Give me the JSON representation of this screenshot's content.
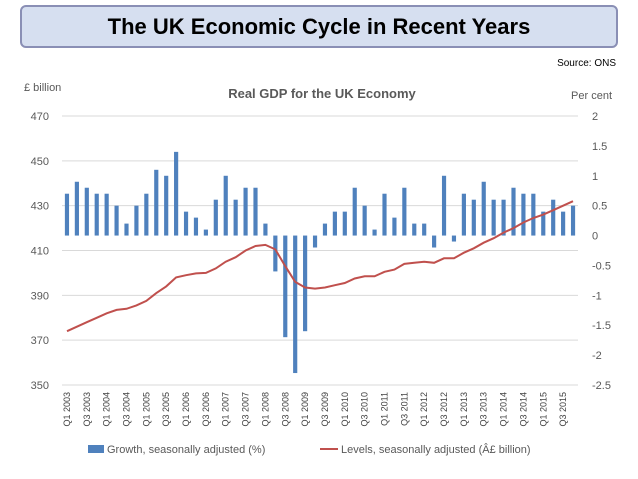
{
  "header": {
    "title": "The UK Economic Cycle in Recent Years"
  },
  "source": "Source: ONS",
  "colors": {
    "bars": "#4f81bd",
    "line": "#c0504d",
    "title_bg": "#d6dff0",
    "title_border": "#8a8fb5"
  },
  "chart_data": {
    "type": "bar+line",
    "title": "Real GDP for the UK Economy",
    "left_axis_label": "£ billion",
    "right_axis_label": "Per cent",
    "left_axis": {
      "min": 350,
      "max": 470,
      "ticks": [
        "470",
        "450",
        "430",
        "410",
        "390",
        "370",
        "350"
      ]
    },
    "right_axis": {
      "min": -2.5,
      "max": 2,
      "ticks": [
        "2",
        "1.5",
        "1",
        "0.5",
        "0",
        "-0.5",
        "-1",
        "-1.5",
        "-2",
        "-2.5"
      ]
    },
    "categories": [
      "Q1 2003",
      "Q2 2003",
      "Q3 2003",
      "Q4 2003",
      "Q1 2004",
      "Q2 2004",
      "Q3 2004",
      "Q4 2004",
      "Q1 2005",
      "Q2 2005",
      "Q3 2005",
      "Q4 2005",
      "Q1 2006",
      "Q2 2006",
      "Q3 2006",
      "Q4 2006",
      "Q1 2007",
      "Q2 2007",
      "Q3 2007",
      "Q4 2007",
      "Q1 2008",
      "Q2 2008",
      "Q3 2008",
      "Q4 2008",
      "Q1 2009",
      "Q2 2009",
      "Q3 2009",
      "Q4 2009",
      "Q1 2010",
      "Q2 2010",
      "Q3 2010",
      "Q4 2010",
      "Q1 2011",
      "Q2 2011",
      "Q3 2011",
      "Q4 2011",
      "Q1 2012",
      "Q2 2012",
      "Q3 2012",
      "Q4 2012",
      "Q1 2013",
      "Q2 2013",
      "Q3 2013",
      "Q4 2013",
      "Q1 2014",
      "Q2 2014",
      "Q3 2014",
      "Q4 2014",
      "Q1 2015",
      "Q2 2015",
      "Q3 2015",
      "Q4 2015"
    ],
    "x_tick_labels": [
      "Q1 2003",
      "Q3 2003",
      "Q1 2004",
      "Q3 2004",
      "Q1 2005",
      "Q3 2005",
      "Q1 2006",
      "Q3 2006",
      "Q1 2007",
      "Q3 2007",
      "Q1 2008",
      "Q3 2008",
      "Q1 2009",
      "Q3 2009",
      "Q1 2010",
      "Q3 2010",
      "Q1 2011",
      "Q3 2011",
      "Q1 2012",
      "Q3 2012",
      "Q1 2013",
      "Q3 2013",
      "Q1 2014",
      "Q3 2014",
      "Q1 2015",
      "Q3 2015"
    ],
    "series": [
      {
        "name": "Growth, seasonally adjusted (%)",
        "axis": "right",
        "type": "bar",
        "values": [
          0.7,
          0.9,
          0.8,
          0.7,
          0.7,
          0.5,
          0.2,
          0.5,
          0.7,
          1.1,
          1.0,
          1.4,
          0.4,
          0.3,
          0.1,
          0.6,
          1.0,
          0.6,
          0.8,
          0.8,
          0.2,
          -0.6,
          -1.7,
          -2.3,
          -1.6,
          -0.2,
          0.2,
          0.4,
          0.4,
          0.8,
          0.5,
          0.1,
          0.7,
          0.3,
          0.8,
          0.2,
          0.2,
          -0.2,
          1.0,
          -0.1,
          0.7,
          0.6,
          0.9,
          0.6,
          0.6,
          0.8,
          0.7,
          0.7,
          0.4,
          0.6,
          0.4,
          0.5
        ]
      },
      {
        "name": "Levels, seasonally adjusted (Â£ billion)",
        "axis": "left",
        "type": "line",
        "values": [
          374,
          376,
          378,
          380,
          382,
          383.5,
          384,
          385.5,
          387.5,
          391,
          394,
          398,
          399,
          399.8,
          400,
          402,
          405,
          407,
          410,
          412,
          412.5,
          410.5,
          403,
          396,
          393.5,
          393,
          393.5,
          394.5,
          395.5,
          397.5,
          398.5,
          398.5,
          400.5,
          401.5,
          404,
          404.5,
          405,
          404.5,
          406.5,
          406.5,
          409,
          411,
          413.5,
          415.5,
          418,
          420,
          422.5,
          424.5,
          426,
          428,
          430,
          432
        ]
      }
    ],
    "legend_position": "bottom",
    "grid": "horizontal"
  }
}
